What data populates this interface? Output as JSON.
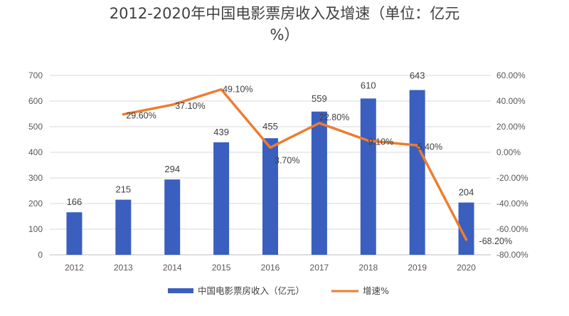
{
  "chart_data": {
    "type": "bar+line",
    "title_line1": "2012-2020年中国电影票房收入及增速（单位：亿元",
    "title_line2": "%）",
    "categories": [
      "2012",
      "2013",
      "2014",
      "2015",
      "2016",
      "2017",
      "2018",
      "2019",
      "2020"
    ],
    "series": [
      {
        "name": "中国电影票房收入（亿元）",
        "type": "bar",
        "axis": "left",
        "color": "#3a5fbf",
        "values": [
          166,
          215,
          294,
          439,
          455,
          559,
          610,
          643,
          204
        ],
        "labels": [
          "166",
          "215",
          "294",
          "439",
          "455",
          "559",
          "610",
          "643",
          "204"
        ]
      },
      {
        "name": "增速%",
        "type": "line",
        "axis": "right",
        "color": "#ed7d31",
        "values": [
          null,
          29.6,
          37.1,
          49.1,
          3.7,
          22.8,
          9.1,
          5.4,
          -68.2
        ],
        "labels": [
          "",
          "29.60%",
          "37.10%",
          "49.10%",
          "3.70%",
          "22.80%",
          "9.10%",
          "5.40%",
          "-68.20%"
        ]
      }
    ],
    "y_left": {
      "min": 0,
      "max": 700,
      "step": 100,
      "ticks": [
        "0",
        "100",
        "200",
        "300",
        "400",
        "500",
        "600",
        "700"
      ]
    },
    "y_right": {
      "min": -80,
      "max": 60,
      "step": 20,
      "ticks": [
        "-80.00%",
        "-60.00%",
        "-40.00%",
        "-20.00%",
        "0.00%",
        "20.00%",
        "40.00%",
        "60.00%"
      ]
    },
    "grid": true,
    "legend_position": "bottom"
  }
}
